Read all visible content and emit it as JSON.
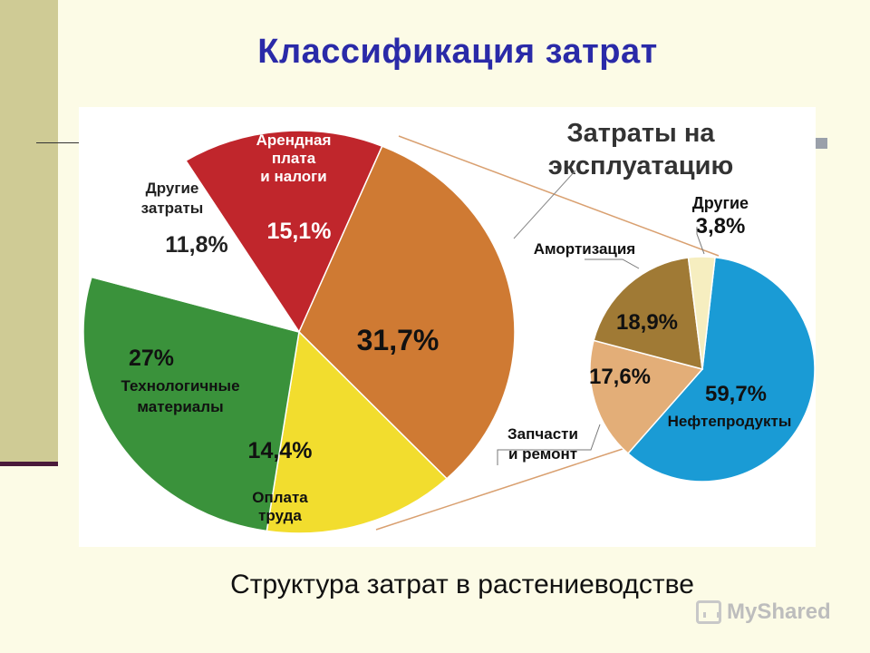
{
  "page_title": "Классификация затрат",
  "caption": "Структура затрат в растениеводстве",
  "watermark": "MyShared",
  "chart_data": [
    {
      "type": "pie",
      "name_id": "main",
      "slices": [
        {
          "label_lines": [
            "Арендная",
            "плата",
            "и налоги"
          ],
          "value": 15.1,
          "value_label": "15,1%",
          "color": "#c0262c"
        },
        {
          "label_lines": [],
          "value": 31.7,
          "value_label": "31,7%",
          "color": "#cf7a33"
        },
        {
          "label_lines": [
            "Оплата",
            "труда"
          ],
          "value": 14.4,
          "value_label": "14,4%",
          "color": "#f2dd2e"
        },
        {
          "label_lines": [
            "Технологичные",
            "материалы"
          ],
          "value": 27,
          "value_label": "27%",
          "color": "#3a923b"
        },
        {
          "label_lines": [
            "Другие",
            "затраты"
          ],
          "value": 11.8,
          "value_label": "11,8%",
          "color": "#ffffff"
        }
      ]
    },
    {
      "type": "pie",
      "name_id": "detail",
      "title_lines": [
        "Затраты на",
        "эксплуатацию"
      ],
      "slices": [
        {
          "label_lines": [
            "Нефтепродукты"
          ],
          "value": 59.7,
          "value_label": "59,7%",
          "color": "#1a9bd5"
        },
        {
          "label_lines": [
            "Запчасти",
            "и ремонт"
          ],
          "value": 17.6,
          "value_label": "17,6%",
          "color": "#e3ae78"
        },
        {
          "label_lines": [
            "Амортизация"
          ],
          "value": 18.9,
          "value_label": "18,9%",
          "color": "#a07a35"
        },
        {
          "label_lines": [
            "Другие"
          ],
          "value": 3.8,
          "value_label": "3,8%",
          "color": "#f6eec0"
        }
      ]
    }
  ]
}
